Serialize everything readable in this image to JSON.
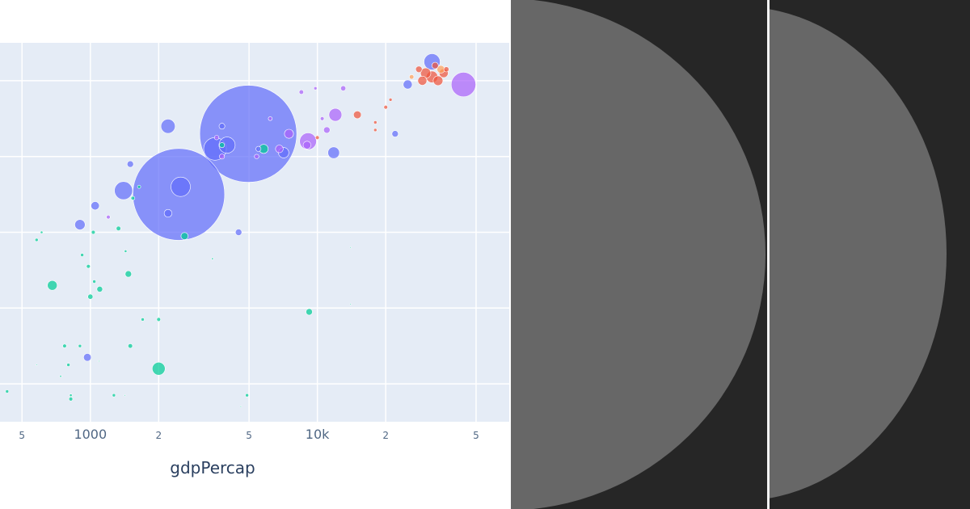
{
  "chart_data": {
    "type": "scatter",
    "xlabel": "gdpPercap",
    "x_scale": "log",
    "xlim": [
      400,
      70000
    ],
    "ylim": [
      35,
      85
    ],
    "x_ticks": [
      {
        "value": 500,
        "label": "5"
      },
      {
        "value": 1000,
        "label": "1000"
      },
      {
        "value": 2000,
        "label": "2"
      },
      {
        "value": 5000,
        "label": "5"
      },
      {
        "value": 10000,
        "label": "10k"
      },
      {
        "value": 20000,
        "label": "2"
      },
      {
        "value": 50000,
        "label": "5"
      }
    ],
    "y_gridlines": [
      40,
      50,
      60,
      70,
      80
    ],
    "grid": true,
    "colors": {
      "asia": "#636efa",
      "europe": "#ef553b",
      "africa": "#00cc96",
      "americas": "#ab63fa",
      "oceania": "#ffa15a",
      "plot_bg": "#e5ecf6",
      "grid": "#ffffff"
    },
    "points": [
      {
        "x": 4960,
        "y": 73.0,
        "s": 150,
        "g": "asia"
      },
      {
        "x": 2450,
        "y": 65.0,
        "s": 142,
        "g": "asia"
      },
      {
        "x": 2500,
        "y": 66.0,
        "s": 30,
        "g": "asia"
      },
      {
        "x": 3540,
        "y": 71.0,
        "s": 35,
        "g": "asia"
      },
      {
        "x": 4000,
        "y": 71.5,
        "s": 25,
        "g": "asia"
      },
      {
        "x": 32000,
        "y": 82.5,
        "s": 25,
        "g": "asia"
      },
      {
        "x": 1400,
        "y": 65.5,
        "s": 28,
        "g": "asia"
      },
      {
        "x": 2200,
        "y": 74.0,
        "s": 22,
        "g": "asia"
      },
      {
        "x": 11800,
        "y": 70.5,
        "s": 18,
        "g": "asia"
      },
      {
        "x": 900,
        "y": 61.0,
        "s": 16,
        "g": "asia"
      },
      {
        "x": 7100,
        "y": 70.5,
        "s": 16,
        "g": "asia"
      },
      {
        "x": 25000,
        "y": 79.5,
        "s": 14,
        "g": "asia"
      },
      {
        "x": 1050,
        "y": 63.5,
        "s": 13,
        "g": "asia"
      },
      {
        "x": 1500,
        "y": 69.0,
        "s": 10,
        "g": "asia"
      },
      {
        "x": 4500,
        "y": 60.0,
        "s": 10,
        "g": "asia"
      },
      {
        "x": 970,
        "y": 43.5,
        "s": 12,
        "g": "asia"
      },
      {
        "x": 2200,
        "y": 62.5,
        "s": 12,
        "g": "asia"
      },
      {
        "x": 3800,
        "y": 74.0,
        "s": 9,
        "g": "asia"
      },
      {
        "x": 22000,
        "y": 73.0,
        "s": 10,
        "g": "asia"
      },
      {
        "x": 5500,
        "y": 71.0,
        "s": 8,
        "g": "asia"
      },
      {
        "x": 44000,
        "y": 79.5,
        "s": 38,
        "g": "americas"
      },
      {
        "x": 9100,
        "y": 72.0,
        "s": 26,
        "g": "americas"
      },
      {
        "x": 12000,
        "y": 75.5,
        "s": 20,
        "g": "americas"
      },
      {
        "x": 7500,
        "y": 73.0,
        "s": 14,
        "g": "americas"
      },
      {
        "x": 9000,
        "y": 71.5,
        "s": 12,
        "g": "americas"
      },
      {
        "x": 6800,
        "y": 71.0,
        "s": 12,
        "g": "americas"
      },
      {
        "x": 11000,
        "y": 73.5,
        "s": 10,
        "g": "americas"
      },
      {
        "x": 13000,
        "y": 79.0,
        "s": 8,
        "g": "americas"
      },
      {
        "x": 8500,
        "y": 78.5,
        "s": 7,
        "g": "americas"
      },
      {
        "x": 3800,
        "y": 70.0,
        "s": 8,
        "g": "americas"
      },
      {
        "x": 5400,
        "y": 70.0,
        "s": 7,
        "g": "americas"
      },
      {
        "x": 3600,
        "y": 72.5,
        "s": 7,
        "g": "americas"
      },
      {
        "x": 9800,
        "y": 79.0,
        "s": 5,
        "g": "americas"
      },
      {
        "x": 10500,
        "y": 75.0,
        "s": 6,
        "g": "americas"
      },
      {
        "x": 6200,
        "y": 75.0,
        "s": 6,
        "g": "americas"
      },
      {
        "x": 1200,
        "y": 62.0,
        "s": 6,
        "g": "americas"
      },
      {
        "x": 32000,
        "y": 80.5,
        "s": 18,
        "g": "europe"
      },
      {
        "x": 30000,
        "y": 81.0,
        "s": 16,
        "g": "europe"
      },
      {
        "x": 34000,
        "y": 80.0,
        "s": 15,
        "g": "europe"
      },
      {
        "x": 29000,
        "y": 80.0,
        "s": 14,
        "g": "europe"
      },
      {
        "x": 36000,
        "y": 81.0,
        "s": 14,
        "g": "europe"
      },
      {
        "x": 15000,
        "y": 75.5,
        "s": 12,
        "g": "europe"
      },
      {
        "x": 33000,
        "y": 82.0,
        "s": 10,
        "g": "europe"
      },
      {
        "x": 28000,
        "y": 81.5,
        "s": 10,
        "g": "europe"
      },
      {
        "x": 20000,
        "y": 76.5,
        "s": 6,
        "g": "europe"
      },
      {
        "x": 18000,
        "y": 73.5,
        "s": 5,
        "g": "europe"
      },
      {
        "x": 18000,
        "y": 74.5,
        "s": 5,
        "g": "europe"
      },
      {
        "x": 21000,
        "y": 77.5,
        "s": 5,
        "g": "europe"
      },
      {
        "x": 10000,
        "y": 72.5,
        "s": 6,
        "g": "europe"
      },
      {
        "x": 37000,
        "y": 81.5,
        "s": 8,
        "g": "europe"
      },
      {
        "x": 35000,
        "y": 81.5,
        "s": 12,
        "g": "oceania"
      },
      {
        "x": 26000,
        "y": 80.5,
        "s": 7,
        "g": "oceania"
      },
      {
        "x": 5800,
        "y": 71.0,
        "s": 14,
        "g": "africa"
      },
      {
        "x": 3800,
        "y": 71.5,
        "s": 8,
        "g": "africa"
      },
      {
        "x": 2600,
        "y": 59.5,
        "s": 11,
        "g": "africa"
      },
      {
        "x": 2000,
        "y": 42.0,
        "s": 20,
        "g": "africa"
      },
      {
        "x": 680,
        "y": 53.0,
        "s": 15,
        "g": "africa"
      },
      {
        "x": 1470,
        "y": 54.5,
        "s": 10,
        "g": "africa"
      },
      {
        "x": 1100,
        "y": 52.5,
        "s": 9,
        "g": "africa"
      },
      {
        "x": 1000,
        "y": 51.5,
        "s": 8,
        "g": "africa"
      },
      {
        "x": 1330,
        "y": 60.5,
        "s": 7,
        "g": "africa"
      },
      {
        "x": 1540,
        "y": 64.5,
        "s": 6,
        "g": "africa"
      },
      {
        "x": 9200,
        "y": 49.5,
        "s": 10,
        "g": "africa"
      },
      {
        "x": 1500,
        "y": 45.0,
        "s": 7,
        "g": "africa"
      },
      {
        "x": 2000,
        "y": 48.5,
        "s": 6,
        "g": "africa"
      },
      {
        "x": 820,
        "y": 38.0,
        "s": 6,
        "g": "africa"
      },
      {
        "x": 1030,
        "y": 60.0,
        "s": 6,
        "g": "africa"
      },
      {
        "x": 980,
        "y": 55.5,
        "s": 6,
        "g": "africa"
      },
      {
        "x": 770,
        "y": 45.0,
        "s": 6,
        "g": "africa"
      },
      {
        "x": 430,
        "y": 39.0,
        "s": 5,
        "g": "africa"
      },
      {
        "x": 1270,
        "y": 38.5,
        "s": 5,
        "g": "africa"
      },
      {
        "x": 900,
        "y": 45.0,
        "s": 5,
        "g": "africa"
      },
      {
        "x": 4900,
        "y": 38.5,
        "s": 5,
        "g": "africa"
      },
      {
        "x": 1700,
        "y": 48.5,
        "s": 5,
        "g": "africa"
      },
      {
        "x": 920,
        "y": 57.0,
        "s": 5,
        "g": "africa"
      },
      {
        "x": 1040,
        "y": 53.5,
        "s": 5,
        "g": "africa"
      },
      {
        "x": 1640,
        "y": 66.0,
        "s": 5,
        "g": "africa"
      },
      {
        "x": 800,
        "y": 42.5,
        "s": 5,
        "g": "africa"
      },
      {
        "x": 580,
        "y": 59.0,
        "s": 5,
        "g": "africa"
      },
      {
        "x": 1430,
        "y": 57.5,
        "s": 4,
        "g": "africa"
      },
      {
        "x": 820,
        "y": 38.5,
        "s": 4,
        "g": "africa"
      },
      {
        "x": 610,
        "y": 60.0,
        "s": 4,
        "g": "africa"
      },
      {
        "x": 3450,
        "y": 56.5,
        "s": 3,
        "g": "africa"
      },
      {
        "x": 740,
        "y": 41.0,
        "s": 3,
        "g": "africa"
      },
      {
        "x": 580,
        "y": 42.5,
        "s": 2,
        "g": "africa"
      },
      {
        "x": 14000,
        "y": 58.0,
        "s": 2,
        "g": "africa"
      },
      {
        "x": 14000,
        "y": 50.5,
        "s": 2,
        "g": "africa"
      },
      {
        "x": 4600,
        "y": 37.0,
        "s": 2,
        "g": "africa"
      },
      {
        "x": 1090,
        "y": 43.0,
        "s": 2,
        "g": "africa"
      },
      {
        "x": 1420,
        "y": 38.5,
        "s": 2,
        "g": "africa"
      }
    ]
  }
}
